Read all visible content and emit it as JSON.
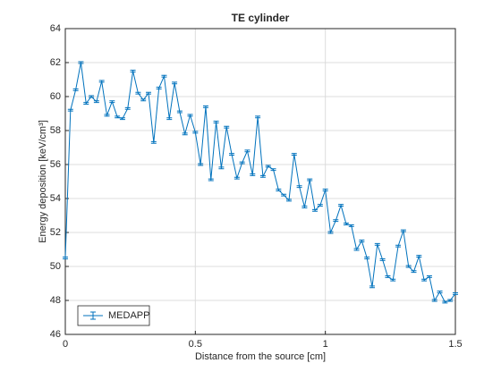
{
  "chart_data": {
    "type": "errorbar-line",
    "title": "TE cylinder",
    "x_label": "Distance from the source [cm]",
    "y_label": "Energy deposition [keV/cm³]",
    "x": [
      0,
      0.02,
      0.04,
      0.06,
      0.08,
      0.1,
      0.12,
      0.14,
      0.16,
      0.18,
      0.2,
      0.22,
      0.24,
      0.26,
      0.28,
      0.3,
      0.32,
      0.34,
      0.36,
      0.38,
      0.4,
      0.42,
      0.44,
      0.46,
      0.48,
      0.5,
      0.52,
      0.54,
      0.56,
      0.58,
      0.6,
      0.62,
      0.64,
      0.66,
      0.68,
      0.7,
      0.72,
      0.74,
      0.76,
      0.78,
      0.8,
      0.82,
      0.84,
      0.86,
      0.88,
      0.9,
      0.92,
      0.94,
      0.96,
      0.98,
      1.0,
      1.02,
      1.04,
      1.06,
      1.08,
      1.1,
      1.12,
      1.14,
      1.16,
      1.18,
      1.2,
      1.22,
      1.24,
      1.26,
      1.28,
      1.3,
      1.32,
      1.34,
      1.36,
      1.38,
      1.4,
      1.42,
      1.44,
      1.46,
      1.48,
      1.5
    ],
    "series": [
      {
        "name": "MEDAPP",
        "color": "#0072bd",
        "values": [
          50.5,
          59.2,
          60.4,
          62.0,
          59.6,
          60.0,
          59.7,
          60.9,
          58.9,
          59.7,
          58.8,
          58.7,
          59.3,
          61.5,
          60.2,
          59.8,
          60.2,
          57.3,
          60.5,
          61.2,
          58.7,
          60.8,
          59.1,
          57.8,
          58.9,
          57.9,
          56.0,
          59.4,
          55.1,
          58.5,
          55.8,
          58.2,
          56.6,
          55.2,
          56.1,
          56.8,
          55.4,
          58.8,
          55.3,
          55.9,
          55.7,
          54.5,
          54.2,
          53.9,
          56.6,
          54.7,
          53.5,
          55.1,
          53.3,
          53.6,
          54.5,
          52.0,
          52.7,
          53.6,
          52.5,
          52.4,
          51.0,
          51.5,
          50.5,
          48.8,
          51.3,
          50.4,
          49.4,
          49.2,
          51.2,
          52.1,
          50.0,
          49.7,
          50.6,
          49.2,
          49.4,
          48.0,
          48.5,
          47.9,
          48.0,
          48.4
        ],
        "errors": [
          0.05,
          0.05,
          0.05,
          0.05,
          0.05,
          0.05,
          0.05,
          0.05,
          0.05,
          0.05,
          0.05,
          0.05,
          0.05,
          0.05,
          0.05,
          0.05,
          0.05,
          0.05,
          0.05,
          0.05,
          0.05,
          0.05,
          0.05,
          0.05,
          0.05,
          0.05,
          0.05,
          0.05,
          0.05,
          0.05,
          0.05,
          0.05,
          0.05,
          0.05,
          0.05,
          0.05,
          0.05,
          0.05,
          0.05,
          0.05,
          0.05,
          0.05,
          0.05,
          0.05,
          0.05,
          0.05,
          0.05,
          0.05,
          0.05,
          0.05,
          0.05,
          0.05,
          0.05,
          0.05,
          0.05,
          0.05,
          0.05,
          0.05,
          0.05,
          0.05,
          0.05,
          0.05,
          0.05,
          0.05,
          0.05,
          0.05,
          0.05,
          0.05,
          0.05,
          0.05,
          0.05,
          0.05,
          0.05,
          0.05,
          0.05,
          0.05
        ]
      }
    ],
    "xlim": [
      0,
      1.5
    ],
    "xticks": [
      0,
      0.5,
      1,
      1.5
    ],
    "ylim": [
      46,
      64
    ],
    "yticks": [
      46,
      48,
      50,
      52,
      54,
      56,
      58,
      60,
      62,
      64
    ],
    "grid": true,
    "legend": "southwest"
  }
}
